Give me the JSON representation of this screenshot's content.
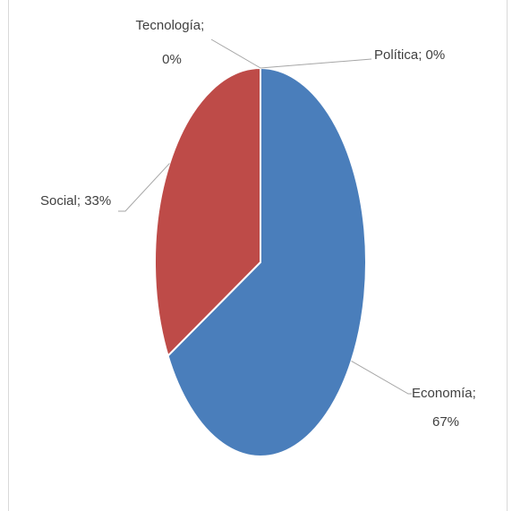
{
  "chart_data": {
    "type": "pie",
    "title": "",
    "categories": [
      "Economía",
      "Social",
      "Tecnología",
      "Política"
    ],
    "values": [
      67,
      33,
      0,
      0
    ],
    "unit": "%",
    "labels": [
      {
        "category": "Economía",
        "value": "67%"
      },
      {
        "category": "Social",
        "value": "33%"
      },
      {
        "category": "Tecnología",
        "value": "0%"
      },
      {
        "category": "Política",
        "value": "0%"
      }
    ],
    "legend": "none",
    "colors": {
      "Economía": "#4a7ebb",
      "Social": "#be4b48",
      "Tecnología": "#98b954",
      "Política": "#7d60a0"
    },
    "slice_border": "#ffffff",
    "leader_line": "#a6a6a6",
    "frame_border": "#d9d9d9"
  }
}
